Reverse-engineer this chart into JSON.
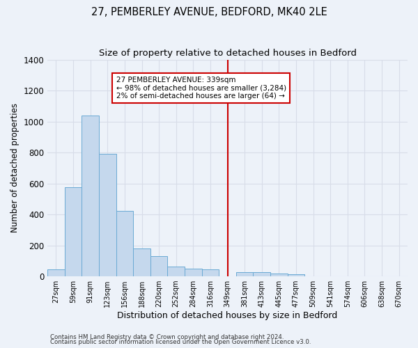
{
  "title": "27, PEMBERLEY AVENUE, BEDFORD, MK40 2LE",
  "subtitle": "Size of property relative to detached houses in Bedford",
  "xlabel": "Distribution of detached houses by size in Bedford",
  "ylabel": "Number of detached properties",
  "bar_labels": [
    "27sqm",
    "59sqm",
    "91sqm",
    "123sqm",
    "156sqm",
    "188sqm",
    "220sqm",
    "252sqm",
    "284sqm",
    "316sqm",
    "349sqm",
    "381sqm",
    "413sqm",
    "445sqm",
    "477sqm",
    "509sqm",
    "541sqm",
    "574sqm",
    "606sqm",
    "638sqm",
    "670sqm"
  ],
  "bar_values": [
    45,
    575,
    1040,
    790,
    425,
    180,
    130,
    65,
    50,
    45,
    0,
    28,
    28,
    20,
    12,
    0,
    0,
    0,
    0,
    0,
    0
  ],
  "bar_color": "#c5d8ed",
  "bar_edge_color": "#6aaad4",
  "bg_color": "#edf2f9",
  "grid_color": "#d8dde8",
  "vline_x_index": 10,
  "vline_color": "#cc0000",
  "annotation_text": "27 PEMBERLEY AVENUE: 339sqm\n← 98% of detached houses are smaller (3,284)\n2% of semi-detached houses are larger (64) →",
  "annotation_box_facecolor": "#ffffff",
  "annotation_box_edgecolor": "#cc0000",
  "ylim": [
    0,
    1400
  ],
  "yticks": [
    0,
    200,
    400,
    600,
    800,
    1000,
    1200,
    1400
  ],
  "footer1": "Contains HM Land Registry data © Crown copyright and database right 2024.",
  "footer2": "Contains public sector information licensed under the Open Government Licence v3.0.",
  "title_fontsize": 10.5,
  "subtitle_fontsize": 9.5,
  "xlabel_fontsize": 9,
  "ylabel_fontsize": 8.5
}
